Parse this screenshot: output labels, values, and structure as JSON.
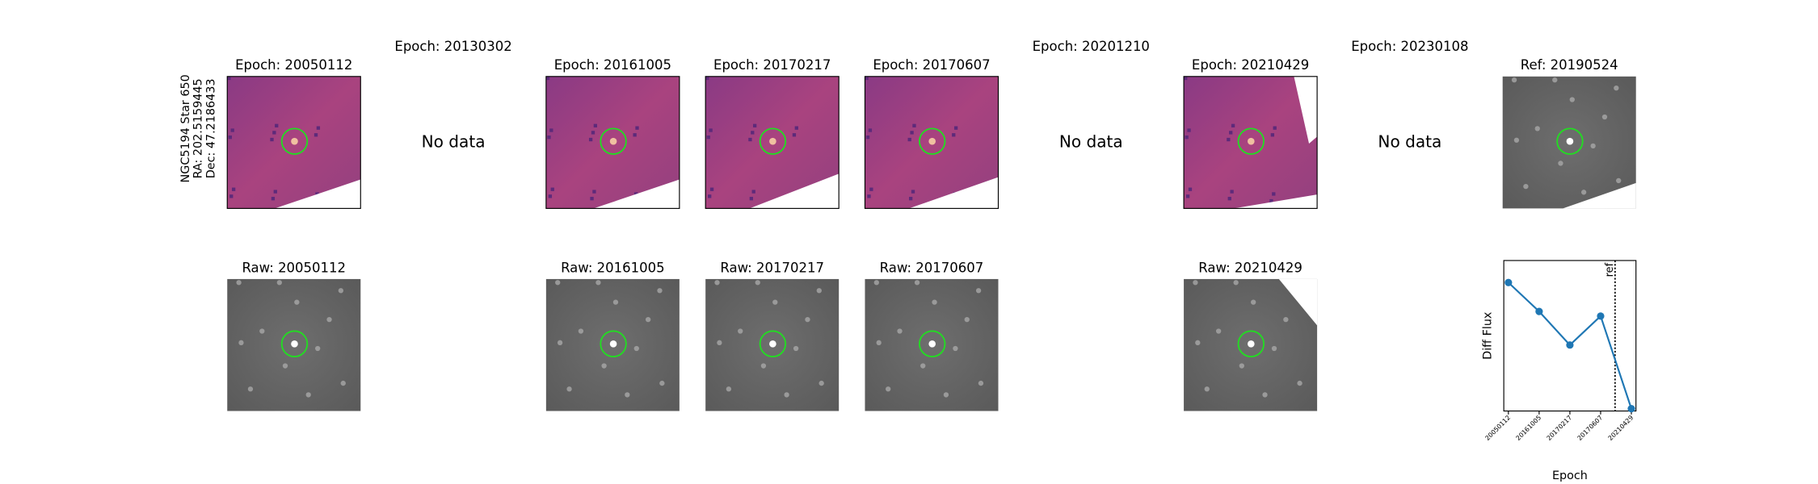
{
  "side_label": [
    "NGC5194 Star 650",
    "RA: 202.5159445",
    "Dec: 47.2186433"
  ],
  "columns": [
    {
      "diff_title": "Epoch: 20050112",
      "raw_title": "Raw: 20050112"
    },
    {
      "diff_title": "Epoch: 20130302",
      "message": "No data"
    },
    {
      "diff_title": "Epoch: 20161005",
      "raw_title": "Raw: 20161005"
    },
    {
      "diff_title": "Epoch: 20170217",
      "raw_title": "Raw: 20170217"
    },
    {
      "diff_title": "Epoch: 20170607",
      "raw_title": "Raw: 20170607"
    },
    {
      "diff_title": "Epoch: 20201210",
      "message": "No data"
    },
    {
      "diff_title": "Epoch: 20210429",
      "raw_title": "Raw: 20210429"
    },
    {
      "diff_title": "Epoch: 20230108",
      "message": "No data"
    },
    {
      "diff_title": "Ref: 20190524"
    }
  ],
  "chart_data": {
    "type": "line",
    "xlabel": "Epoch",
    "ylabel": "Diff Flux",
    "categories": [
      "20050112",
      "20161005",
      "20170217",
      "20170607",
      "20210429"
    ],
    "values": [
      111,
      86,
      57,
      82,
      2
    ],
    "color": "#1f77b4",
    "ylim": [
      0,
      130
    ],
    "yticks": [],
    "vlines": [
      {
        "x": 3.47,
        "label": "ref"
      }
    ]
  }
}
